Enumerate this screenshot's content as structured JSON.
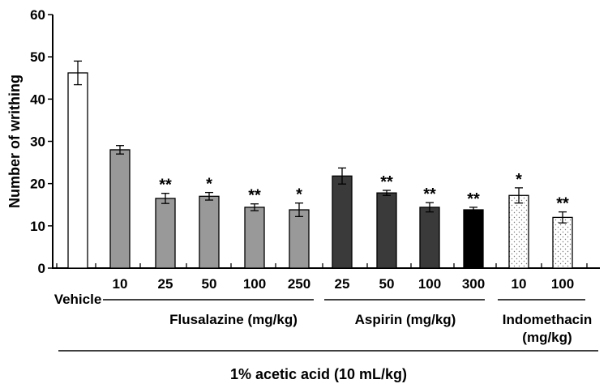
{
  "chart_data": {
    "type": "bar",
    "ylabel": "Number of writhing",
    "ylim": [
      0,
      60
    ],
    "yticks": [
      0,
      10,
      20,
      30,
      40,
      50,
      60
    ],
    "grid": false,
    "legend": "none",
    "categories": [
      "Vehicle",
      "10",
      "25",
      "50",
      "100",
      "250",
      "25",
      "50",
      "100",
      "300",
      "10",
      "100"
    ],
    "values": [
      46.2,
      28.0,
      16.5,
      17.0,
      14.4,
      13.8,
      21.8,
      17.8,
      14.4,
      13.8,
      17.2,
      12.0
    ],
    "errors": [
      2.8,
      1.0,
      1.2,
      0.9,
      0.8,
      1.6,
      1.9,
      0.6,
      1.1,
      0.6,
      1.8,
      1.3
    ],
    "significance": [
      "",
      "",
      "**",
      "*",
      "**",
      "*",
      "",
      "**",
      "**",
      "**",
      "*",
      "**"
    ],
    "bar_fills": [
      "#ffffff",
      "#999999",
      "#999999",
      "#999999",
      "#999999",
      "#999999",
      "#3a3a3a",
      "#3a3a3a",
      "#3a3a3a",
      "#000000",
      "dotted",
      "dotted"
    ],
    "groups": [
      {
        "label": "Flusalazine (mg/kg)",
        "first": 1,
        "last": 5
      },
      {
        "label": "Aspirin (mg/kg)",
        "first": 6,
        "last": 9
      },
      {
        "label": "Indomethacin\n(mg/kg)",
        "first": 10,
        "last": 11
      }
    ],
    "footer": "1% acetic acid (10 mL/kg)"
  }
}
